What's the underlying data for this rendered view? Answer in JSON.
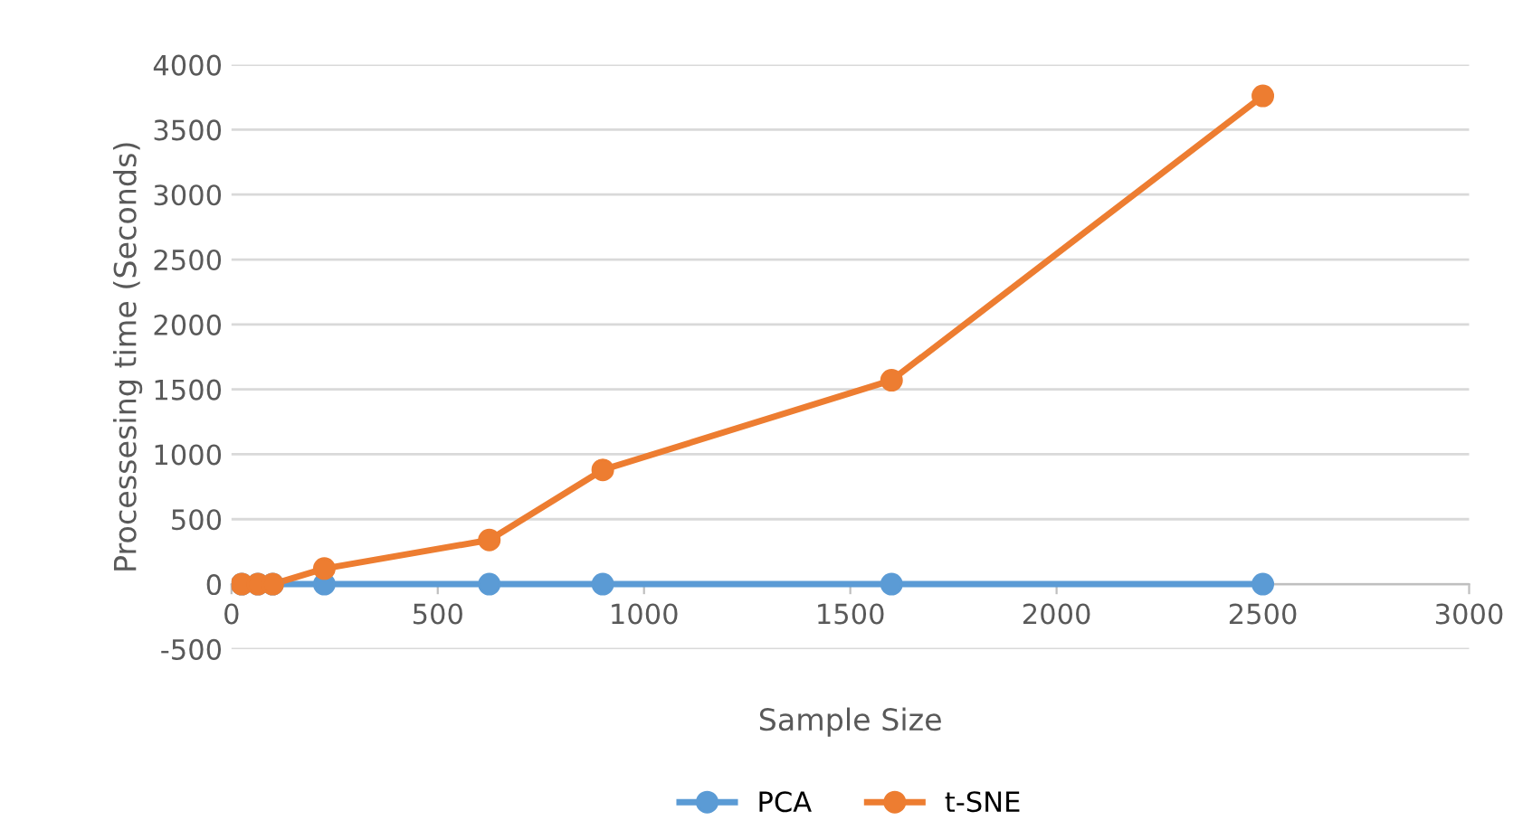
{
  "chart_data": {
    "type": "line",
    "xlabel": "Sample Size",
    "ylabel": "Processesing time (Seconds)",
    "x": [
      25,
      64,
      100,
      225,
      625,
      900,
      1600,
      2500
    ],
    "series": [
      {
        "name": "PCA",
        "color": "#5b9bd5",
        "values": [
          0,
          0,
          0,
          0,
          0,
          0,
          0,
          0
        ]
      },
      {
        "name": "t-SNE",
        "color": "#ed7d31",
        "values": [
          0,
          0,
          0,
          120,
          340,
          880,
          1570,
          3760
        ]
      }
    ],
    "xlim": [
      0,
      3000
    ],
    "xticks": [
      0,
      500,
      1000,
      1500,
      2000,
      2500,
      3000
    ],
    "ylim": [
      -500,
      4000
    ],
    "yticks": [
      -500,
      0,
      500,
      1000,
      1500,
      2000,
      2500,
      3000,
      3500,
      4000
    ],
    "grid": "y",
    "legend": "bottom",
    "marker": "circle",
    "line_style": "solid"
  }
}
